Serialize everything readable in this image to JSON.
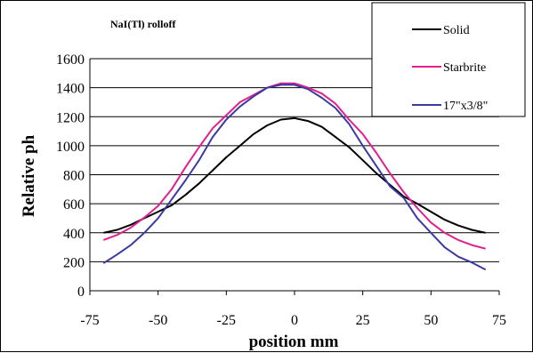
{
  "chart_data": {
    "type": "line",
    "title": "NaI(Tl) rolloff",
    "xlabel": "position mm",
    "ylabel": "Relative ph",
    "xlim": [
      -75,
      75
    ],
    "ylim": [
      0,
      1600
    ],
    "xticks": [
      "-75",
      "-50",
      "-25",
      "0",
      "25",
      "50",
      "75"
    ],
    "yticks": [
      "0",
      "200",
      "400",
      "600",
      "800",
      "1000",
      "1200",
      "1400",
      "1600"
    ],
    "grid": "horizontal",
    "legend_position": "top-right",
    "series": [
      {
        "name": "Solid",
        "color": "#000000",
        "x": [
          -70,
          -65,
          -60,
          -55,
          -50,
          -45,
          -40,
          -35,
          -30,
          -25,
          -20,
          -15,
          -10,
          -5,
          0,
          5,
          10,
          15,
          20,
          25,
          30,
          35,
          40,
          45,
          50,
          55,
          60,
          65,
          70
        ],
        "values": [
          400,
          420,
          455,
          500,
          545,
          590,
          660,
          740,
          830,
          920,
          1000,
          1080,
          1140,
          1180,
          1190,
          1170,
          1130,
          1060,
          990,
          900,
          810,
          730,
          650,
          600,
          545,
          490,
          450,
          420,
          400
        ]
      },
      {
        "name": "Starbrite",
        "color": "#e0208c",
        "x": [
          -70,
          -65,
          -60,
          -55,
          -50,
          -45,
          -40,
          -35,
          -30,
          -25,
          -20,
          -15,
          -10,
          -5,
          0,
          5,
          10,
          15,
          20,
          25,
          30,
          35,
          40,
          45,
          50,
          55,
          60,
          65,
          70
        ],
        "values": [
          350,
          385,
          435,
          505,
          585,
          700,
          850,
          990,
          1120,
          1210,
          1300,
          1350,
          1400,
          1430,
          1430,
          1400,
          1360,
          1290,
          1180,
          1080,
          950,
          810,
          680,
          570,
          470,
          400,
          350,
          315,
          290
        ]
      },
      {
        "name": "17\"x3/8\"",
        "color": "#3a3aa0",
        "x": [
          -70,
          -65,
          -60,
          -55,
          -50,
          -45,
          -40,
          -35,
          -30,
          -25,
          -20,
          -15,
          -10,
          -5,
          0,
          5,
          10,
          15,
          20,
          25,
          30,
          35,
          40,
          45,
          50,
          55,
          60,
          65,
          70
        ],
        "values": [
          190,
          250,
          315,
          400,
          500,
          630,
          760,
          900,
          1060,
          1180,
          1270,
          1340,
          1400,
          1420,
          1420,
          1390,
          1330,
          1260,
          1150,
          1000,
          860,
          720,
          640,
          500,
          400,
          300,
          235,
          195,
          145
        ]
      }
    ]
  }
}
